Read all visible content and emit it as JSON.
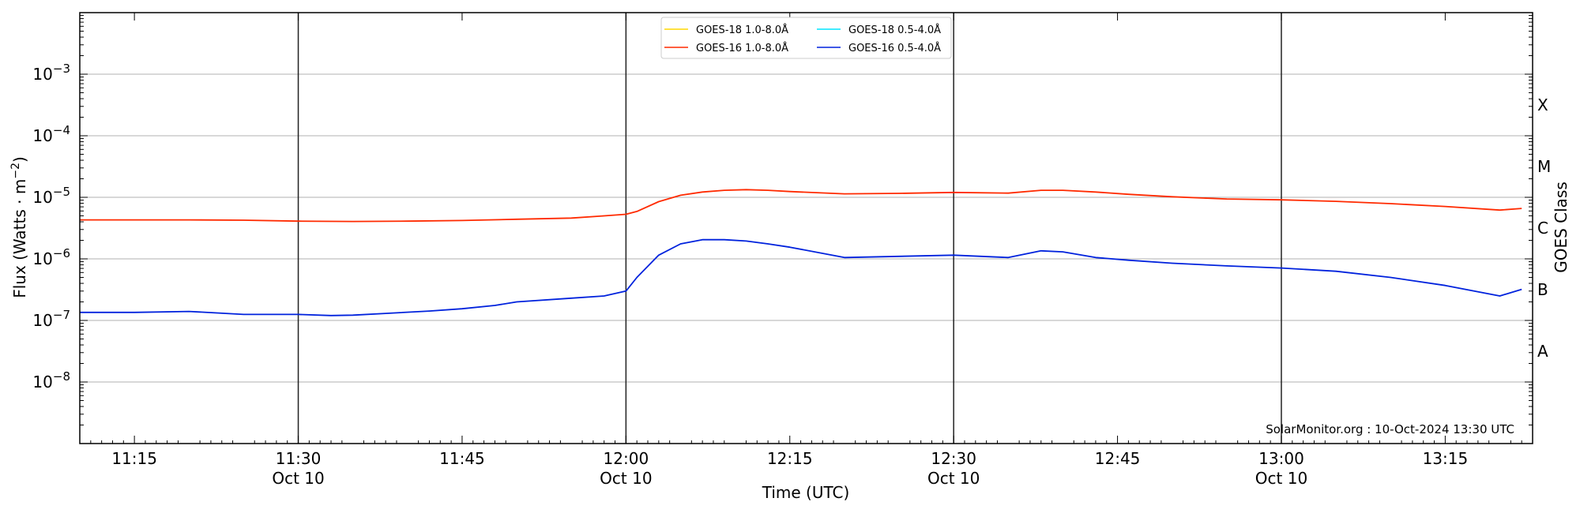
{
  "chart_data": {
    "type": "line",
    "xlabel": "Time (UTC)",
    "ylabel": "Flux (Watts · m",
    "ylabel_sup": "−2",
    "ylabel_close": ")",
    "right_ylabel": "GOES Class",
    "x_range_minutes": [
      0,
      133
    ],
    "ylim_log10": [
      -9,
      -2
    ],
    "yscale": "log",
    "grid": "horizontal at decades",
    "x_ticks": [
      {
        "time": "11:15",
        "date": ""
      },
      {
        "time": "11:30",
        "date": "Oct 10"
      },
      {
        "time": "11:45",
        "date": ""
      },
      {
        "time": "12:00",
        "date": "Oct 10"
      },
      {
        "time": "12:15",
        "date": ""
      },
      {
        "time": "12:30",
        "date": "Oct 10"
      },
      {
        "time": "12:45",
        "date": ""
      },
      {
        "time": "13:00",
        "date": "Oct 10"
      },
      {
        "time": "13:15",
        "date": ""
      }
    ],
    "y_ticks": [
      {
        "base": "10",
        "exp": "−3",
        "log": -3
      },
      {
        "base": "10",
        "exp": "−4",
        "log": -4
      },
      {
        "base": "10",
        "exp": "−5",
        "log": -5
      },
      {
        "base": "10",
        "exp": "−6",
        "log": -6
      },
      {
        "base": "10",
        "exp": "−7",
        "log": -7
      },
      {
        "base": "10",
        "exp": "−8",
        "log": -8
      }
    ],
    "class_labels": [
      {
        "label": "X",
        "log": -3.5
      },
      {
        "label": "M",
        "log": -4.5
      },
      {
        "label": "C",
        "log": -5.5
      },
      {
        "label": "B",
        "log": -6.5
      },
      {
        "label": "A",
        "log": -7.5
      }
    ],
    "legend_placement": "top-center",
    "legend": [
      {
        "name": "GOES-18 1.0-8.0Å",
        "color": "#ffd700"
      },
      {
        "name": "GOES-18 0.5-4.0Å",
        "color": "#00e5ff"
      },
      {
        "name": "GOES-16 1.0-8.0Å",
        "color": "#ff2a00"
      },
      {
        "name": "GOES-16 0.5-4.0Å",
        "color": "#0022dd"
      }
    ],
    "credit": "SolarMonitor.org : 10-Oct-2024 13:30 UTC",
    "series": [
      {
        "name": "GOES-16 1.0-8.0Å",
        "color": "#ff2a00",
        "x_minutes": [
          0,
          5,
          10,
          15,
          20,
          25,
          30,
          35,
          40,
          45,
          48,
          50,
          51,
          53,
          55,
          57,
          59,
          61,
          63,
          65,
          70,
          75,
          80,
          85,
          88,
          90,
          93,
          96,
          100,
          105,
          110,
          115,
          120,
          125,
          130,
          132
        ],
        "y": [
          4.3e-06,
          4.3e-06,
          4.3e-06,
          4.25e-06,
          4.1e-06,
          4.05e-06,
          4.1e-06,
          4.2e-06,
          4.4e-06,
          4.6e-06,
          5e-06,
          5.3e-06,
          5.9e-06,
          8.5e-06,
          1.08e-05,
          1.22e-05,
          1.3e-05,
          1.33e-05,
          1.3e-05,
          1.24e-05,
          1.14e-05,
          1.16e-05,
          1.2e-05,
          1.17e-05,
          1.3e-05,
          1.3e-05,
          1.22e-05,
          1.12e-05,
          1.02e-05,
          9.4e-06,
          9.1e-06,
          8.6e-06,
          7.9e-06,
          7.1e-06,
          6.2e-06,
          6.6e-06
        ]
      },
      {
        "name": "GOES-16 0.5-4.0Å",
        "color": "#0022dd",
        "x_minutes": [
          0,
          5,
          10,
          15,
          20,
          23,
          25,
          28,
          32,
          35,
          38,
          40,
          45,
          48,
          50,
          51,
          53,
          55,
          57,
          59,
          61,
          63,
          65,
          70,
          75,
          80,
          85,
          88,
          90,
          93,
          96,
          100,
          105,
          110,
          115,
          120,
          125,
          130,
          132
        ],
        "y": [
          1.35e-07,
          1.35e-07,
          1.4e-07,
          1.25e-07,
          1.25e-07,
          1.2e-07,
          1.22e-07,
          1.3e-07,
          1.42e-07,
          1.55e-07,
          1.75e-07,
          2e-07,
          2.3e-07,
          2.5e-07,
          3e-07,
          5e-07,
          1.15e-06,
          1.75e-06,
          2.05e-06,
          2.05e-06,
          1.95e-06,
          1.75e-06,
          1.55e-06,
          1.05e-06,
          1.1e-06,
          1.15e-06,
          1.05e-06,
          1.35e-06,
          1.3e-06,
          1.05e-06,
          9.5e-07,
          8.5e-07,
          7.7e-07,
          7.1e-07,
          6.3e-07,
          5e-07,
          3.7e-07,
          2.5e-07,
          3.2e-07
        ]
      }
    ]
  }
}
